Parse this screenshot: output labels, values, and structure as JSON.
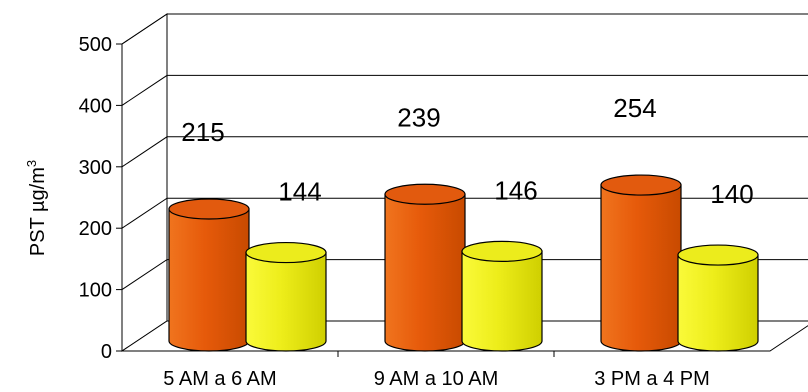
{
  "chart_data": {
    "type": "bar",
    "style": "3d-cylinder",
    "categories": [
      "5 AM a 6 AM",
      "9 AM a 10 AM",
      "3 PM a 4 PM"
    ],
    "series": [
      {
        "values": [
          215,
          239,
          254
        ],
        "color": "#e25a0e"
      },
      {
        "values": [
          144,
          146,
          140
        ],
        "color": "#ecec1c"
      }
    ],
    "ylabel_main": "PST ",
    "ylabel_unit": "µg/m",
    "ylabel_exp": "3",
    "ylim": [
      0,
      500
    ],
    "yticks": [
      0,
      100,
      200,
      300,
      400,
      500
    ],
    "grid": true
  }
}
